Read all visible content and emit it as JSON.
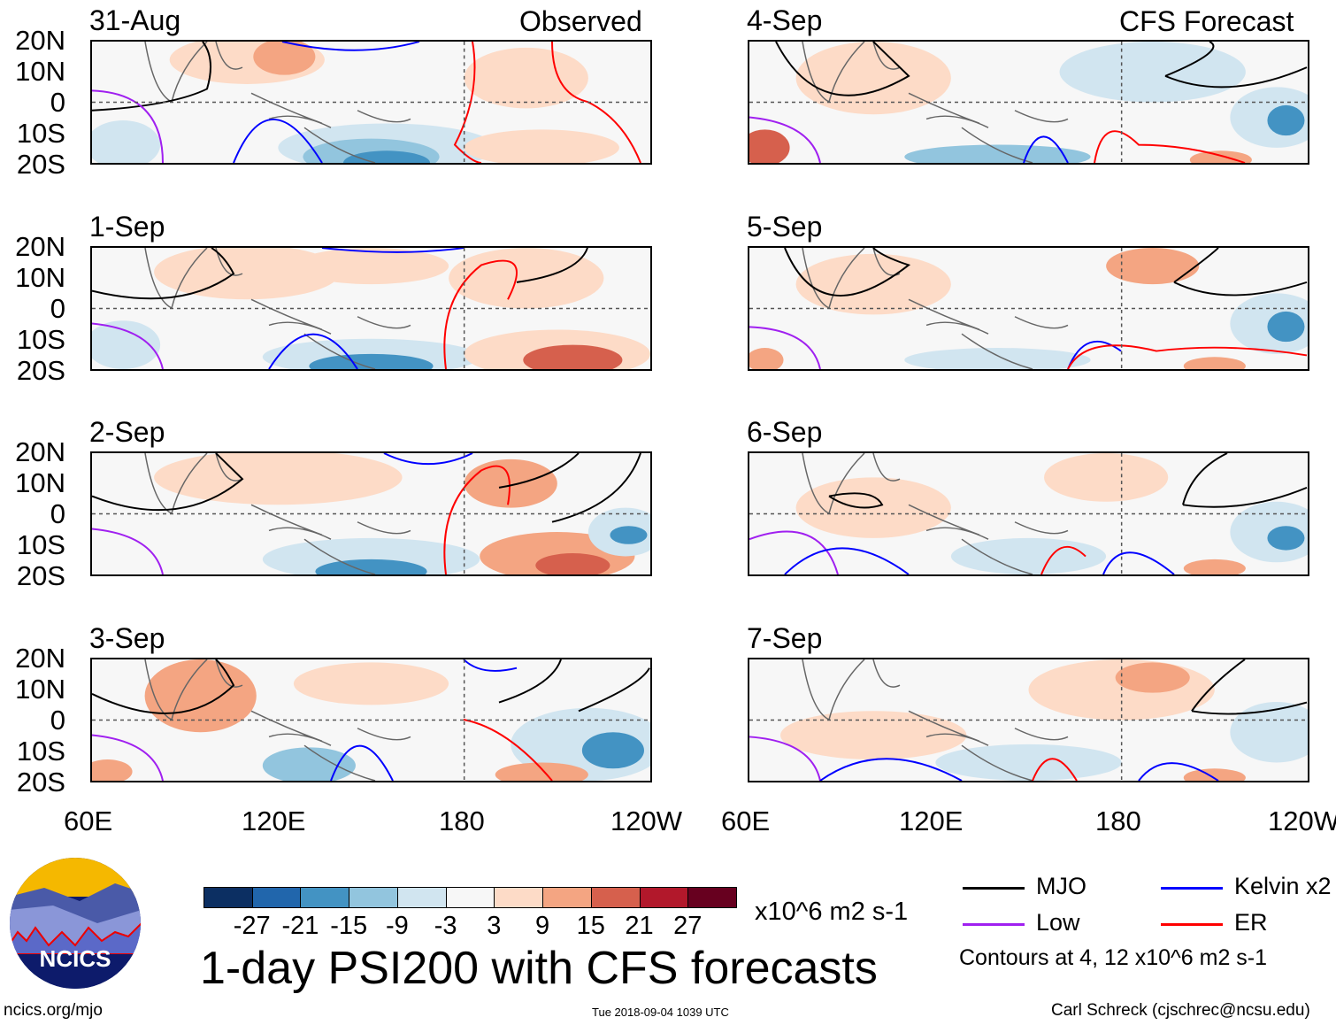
{
  "chart_data": {
    "type": "heatmap",
    "title": "1-day PSI200 with CFS forecasts",
    "variable": "200-hPa streamfunction anomaly",
    "units": "x10^6 m2 s-1",
    "observed_label": "Observed",
    "forecast_label": "CFS Forecast",
    "panels_observed": [
      "31-Aug",
      "1-Sep",
      "2-Sep",
      "3-Sep"
    ],
    "panels_forecast": [
      "4-Sep",
      "5-Sep",
      "6-Sep",
      "7-Sep"
    ],
    "y_ticks": [
      "20N",
      "10N",
      "0",
      "10S",
      "20S"
    ],
    "x_ticks": [
      "60E",
      "120E",
      "180",
      "120W"
    ],
    "ylim": [
      -20,
      20
    ],
    "xlim": [
      60,
      240
    ],
    "colorbar": {
      "levels": [
        "-27",
        "-21",
        "-15",
        "-9",
        "-3",
        "3",
        "9",
        "15",
        "21",
        "27"
      ],
      "colors": [
        "#0c2f62",
        "#2166ac",
        "#4393c3",
        "#92c5de",
        "#d1e5f0",
        "#f7f7f7",
        "#fddbc7",
        "#f4a582",
        "#d6604d",
        "#b2182b",
        "#67001f"
      ]
    },
    "legend": [
      {
        "label": "MJO",
        "color": "#000000"
      },
      {
        "label": "Kelvin x2",
        "color": "#0000ff"
      },
      {
        "label": "Low",
        "color": "#a020f0"
      },
      {
        "label": "ER",
        "color": "#ff0000"
      }
    ],
    "contour_note": "Contours at 4, 12 x10^6 m2 s-1"
  },
  "footer": {
    "logo_text": "NCICS",
    "url": "ncics.org/mjo",
    "timestamp": "Tue 2018-09-04 1039 UTC",
    "author": "Carl Schreck (cjschrec@ncsu.edu)"
  }
}
